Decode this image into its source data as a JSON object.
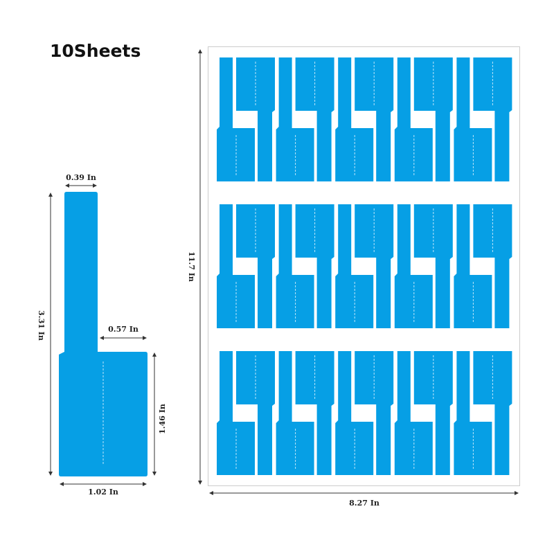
{
  "title": "10Sheets",
  "label_color": "#069fe5",
  "single_label": {
    "top_width": "0.39 In",
    "total_height": "3.31 In",
    "step_width": "0.57 In",
    "base_height": "1.46 In",
    "base_width": "1.02 In"
  },
  "sheet": {
    "height": "11.7 In",
    "width": "8.27 In",
    "rows": 3,
    "pairs_per_row": 5
  }
}
